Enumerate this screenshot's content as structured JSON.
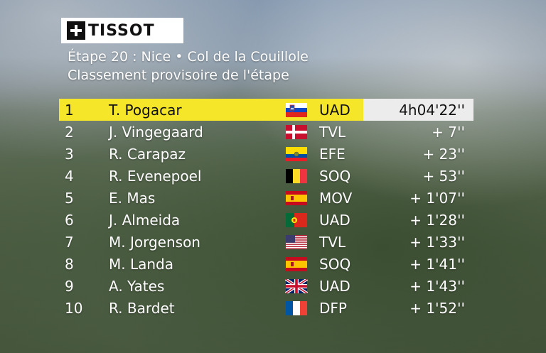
{
  "brand": {
    "logo_text": "TISSOT",
    "icon": "tissot-cross-icon"
  },
  "header": {
    "line1": "Étape 20 : Nice • Col de la Couillole",
    "line2": "Classement provisoire de l'étape"
  },
  "colors": {
    "leader_bg": "#f5e62a",
    "leader_time_bg": "#ececec"
  },
  "standings": [
    {
      "rank": "1",
      "name": "T. Pogacar",
      "flag": "slovenia-flag-icon",
      "team": "UAD",
      "time": "4h04'22''"
    },
    {
      "rank": "2",
      "name": "J. Vingegaard",
      "flag": "denmark-flag-icon",
      "team": "TVL",
      "time": "+ 7''"
    },
    {
      "rank": "3",
      "name": "R. Carapaz",
      "flag": "ecuador-flag-icon",
      "team": "EFE",
      "time": "+ 23''"
    },
    {
      "rank": "4",
      "name": "R. Evenepoel",
      "flag": "belgium-flag-icon",
      "team": "SOQ",
      "time": "+ 53''"
    },
    {
      "rank": "5",
      "name": "E. Mas",
      "flag": "spain-flag-icon",
      "team": "MOV",
      "time": "+ 1'07''"
    },
    {
      "rank": "6",
      "name": "J. Almeida",
      "flag": "portugal-flag-icon",
      "team": "UAD",
      "time": "+ 1'28''"
    },
    {
      "rank": "7",
      "name": "M. Jorgenson",
      "flag": "usa-flag-icon",
      "team": "TVL",
      "time": "+ 1'33''"
    },
    {
      "rank": "8",
      "name": "M. Landa",
      "flag": "spain-flag-icon",
      "team": "SOQ",
      "time": "+ 1'41''"
    },
    {
      "rank": "9",
      "name": "A. Yates",
      "flag": "uk-flag-icon",
      "team": "UAD",
      "time": "+ 1'43''"
    },
    {
      "rank": "10",
      "name": "R. Bardet",
      "flag": "france-flag-icon",
      "team": "DFP",
      "time": "+ 1'52''"
    }
  ]
}
